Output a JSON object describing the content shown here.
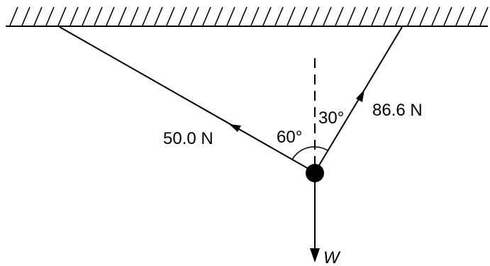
{
  "forces": {
    "left_tension": "50.0 N",
    "right_tension": "86.6 N",
    "weight": "W"
  },
  "angles": {
    "left": "60°",
    "right": "30°"
  }
}
